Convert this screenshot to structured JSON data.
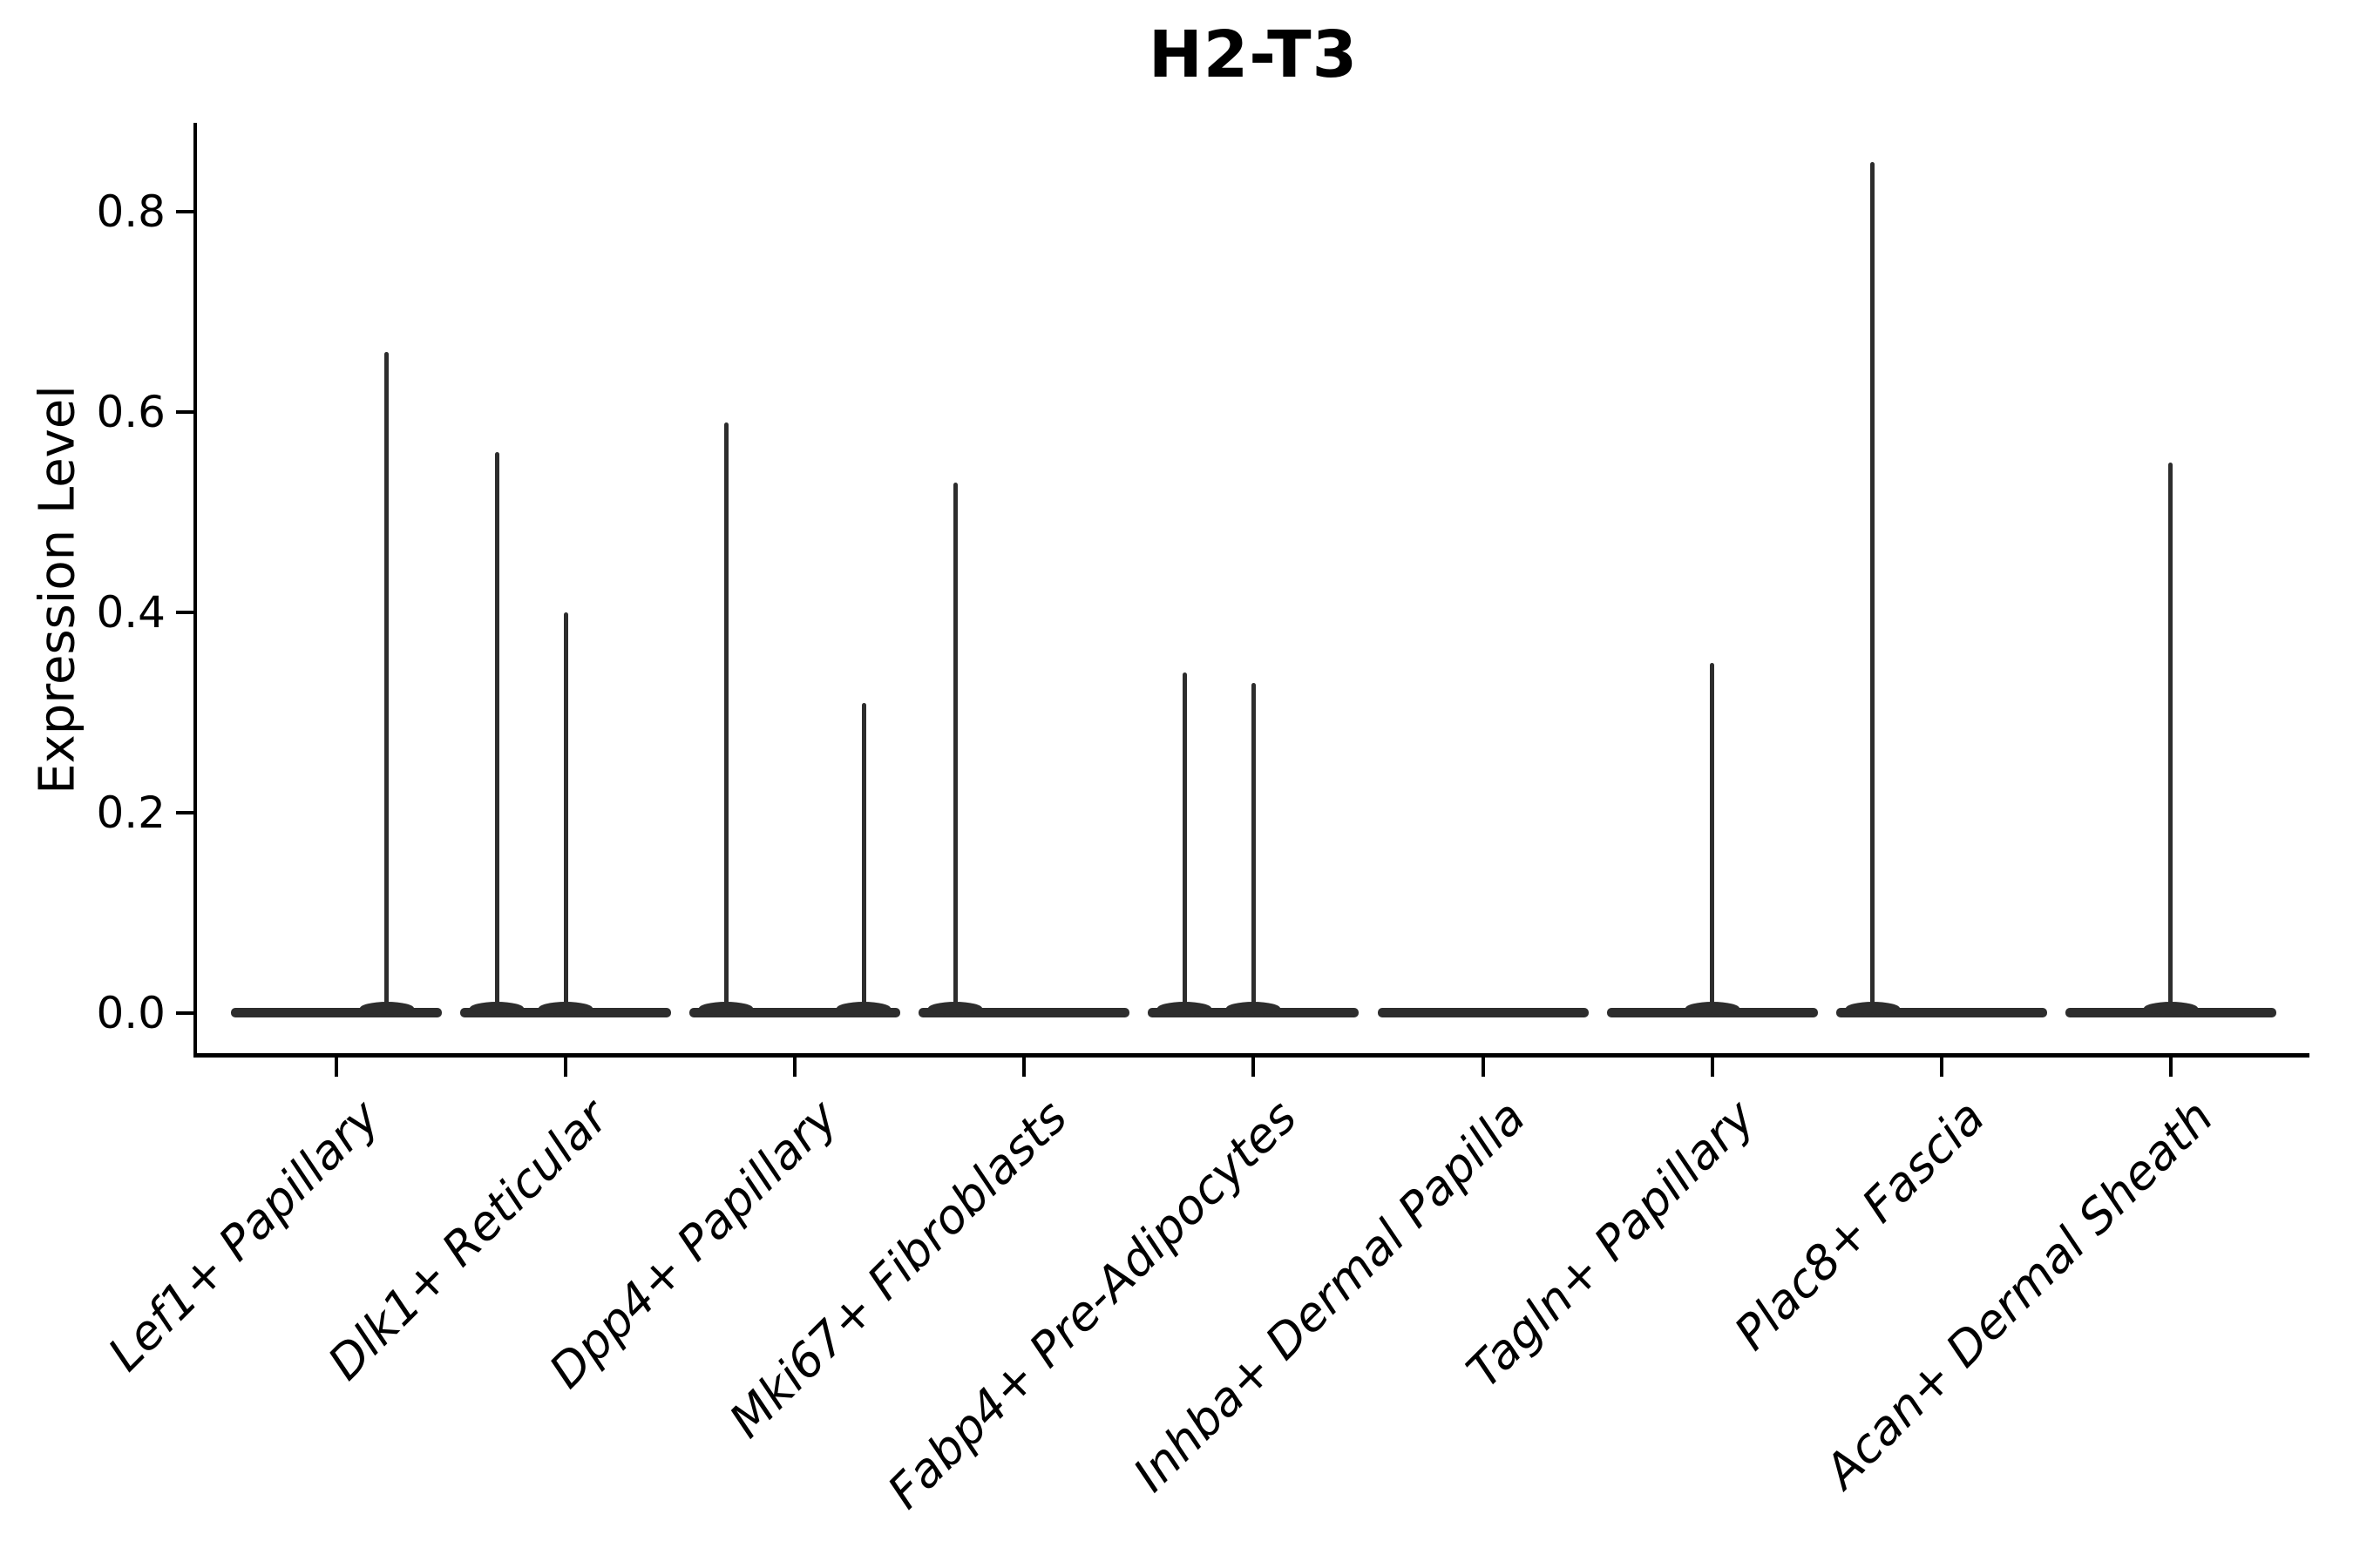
{
  "figure": {
    "title": "H2-T3",
    "ylabel": "Expression Level"
  },
  "colors": {
    "violin": "#2d2d2d",
    "axis": "#000000",
    "text": "#000000",
    "background": "#ffffff"
  },
  "chart_data": {
    "type": "violin",
    "title": "H2-T3",
    "xlabel": "",
    "ylabel": "Expression Level",
    "ylim": [
      -0.042,
      0.889
    ],
    "yticks": [
      "0.0",
      "0.2",
      "0.4",
      "0.6",
      "0.8"
    ],
    "ytick_values": [
      0.0,
      0.2,
      0.4,
      0.6,
      0.8
    ],
    "grid": false,
    "legend": false,
    "x_tick_rotation_deg": 45,
    "categories": [
      "Lef1+ Papillary",
      "Dlk1+ Reticular",
      "Dpp4+ Papillary",
      "Mki67+ Fibroblasts",
      "Fabp4+ Pre-Adipocytes",
      "Inhba+ Dermal Papilla",
      "Tagln+ Papillary",
      "Plac8+ Fascia",
      "Acan+ Dermal Sheath"
    ],
    "violins": [
      {
        "category": "Lef1+ Papillary",
        "baseline_value": 0.0,
        "spikes": [
          {
            "x_offset": 0.22,
            "max_value": 0.66
          }
        ]
      },
      {
        "category": "Dlk1+ Reticular",
        "baseline_value": 0.0,
        "spikes": [
          {
            "x_offset": -0.3,
            "max_value": 0.56
          },
          {
            "x_offset": 0.0,
            "max_value": 0.4
          }
        ]
      },
      {
        "category": "Dpp4+ Papillary",
        "baseline_value": 0.0,
        "spikes": [
          {
            "x_offset": -0.3,
            "max_value": 0.59
          },
          {
            "x_offset": 0.3,
            "max_value": 0.31
          }
        ]
      },
      {
        "category": "Mki67+ Fibroblasts",
        "baseline_value": 0.0,
        "spikes": [
          {
            "x_offset": -0.3,
            "max_value": 0.53
          }
        ]
      },
      {
        "category": "Fabp4+ Pre-Adipocytes",
        "baseline_value": 0.0,
        "spikes": [
          {
            "x_offset": -0.3,
            "max_value": 0.34
          },
          {
            "x_offset": 0.0,
            "max_value": 0.33
          }
        ]
      },
      {
        "category": "Inhba+ Dermal Papilla",
        "baseline_value": 0.0,
        "spikes": []
      },
      {
        "category": "Tagln+ Papillary",
        "baseline_value": 0.0,
        "spikes": [
          {
            "x_offset": 0.0,
            "max_value": 0.35
          }
        ]
      },
      {
        "category": "Plac8+ Fascia",
        "baseline_value": 0.0,
        "spikes": [
          {
            "x_offset": -0.3,
            "max_value": 0.85
          }
        ]
      },
      {
        "category": "Acan+ Dermal Sheath",
        "baseline_value": 0.0,
        "spikes": [
          {
            "x_offset": 0.0,
            "max_value": 0.55
          }
        ]
      }
    ]
  }
}
